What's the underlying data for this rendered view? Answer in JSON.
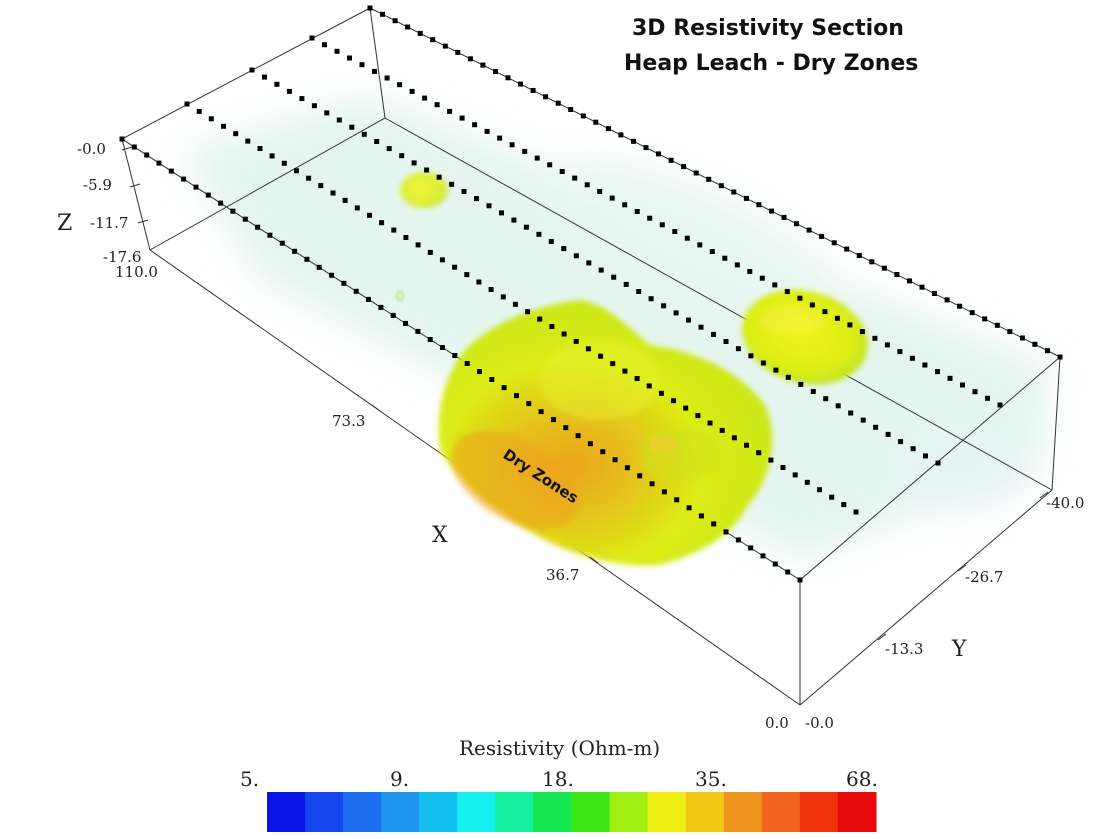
{
  "title": {
    "line1": "3D Resistivity Section",
    "line2": "Heap Leach - Dry Zones"
  },
  "annotation": "Dry Zones",
  "axes": {
    "x": {
      "label": "X",
      "ticks": [
        "110.0",
        "73.3",
        "36.7",
        "0.0"
      ]
    },
    "y": {
      "label": "Y",
      "ticks": [
        "-0.0",
        "-13.3",
        "-26.7",
        "-40.0"
      ]
    },
    "z": {
      "label": "Z",
      "ticks": [
        "-0.0",
        "-5.9",
        "-11.7",
        "-17.6"
      ]
    }
  },
  "legend": {
    "title": "Resistivity (Ohm-m)",
    "ticks": [
      "5.",
      "9.",
      "18.",
      "35.",
      "68."
    ],
    "colors": [
      "#0a14e6",
      "#1446f0",
      "#1e6ef0",
      "#1e96f0",
      "#14c0f0",
      "#14f0f0",
      "#14f0a0",
      "#14e650",
      "#3ce614",
      "#a0f014",
      "#f0f014",
      "#f0c814",
      "#f0961e",
      "#f0641e",
      "#f0320a",
      "#e60a0a"
    ]
  },
  "colors": {
    "dry_zone_fill": "#d7ee16",
    "dry_zone_core": "#eea21e",
    "background_haze": "#cfeee2",
    "electrode": "#000000"
  }
}
